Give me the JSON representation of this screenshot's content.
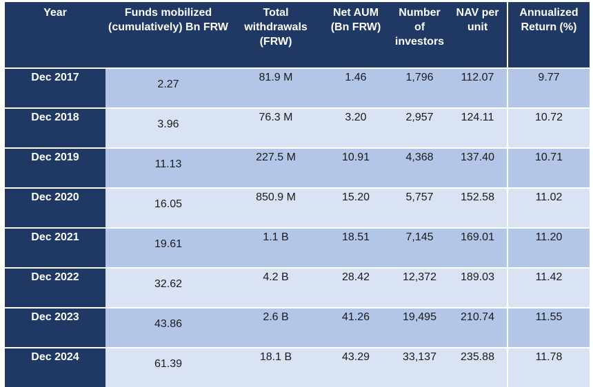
{
  "table": {
    "headers": [
      "Year",
      "Funds mobilized (cumulatively) Bn FRW",
      "Total withdrawals (FRW)",
      "Net AUM (Bn FRW)",
      "Number of investors",
      "NAV per unit",
      "Annualized Return (%)"
    ],
    "rows": [
      [
        "Dec 2017",
        "2.27",
        "81.9 M",
        "1.46",
        "1,796",
        "112.07",
        "9.77"
      ],
      [
        "Dec 2018",
        "3.96",
        "76.3 M",
        "3.20",
        "2,957",
        "124.11",
        "10.72"
      ],
      [
        "Dec 2019",
        "11.13",
        "227.5 M",
        "10.91",
        "4,368",
        "137.40",
        "10.71"
      ],
      [
        "Dec 2020",
        "16.05",
        "850.9 M",
        "15.20",
        "5,757",
        "152.58",
        "11.02"
      ],
      [
        "Dec 2021",
        "19.61",
        "1.1 B",
        "18.51",
        "7,145",
        "169.01",
        "11.20"
      ],
      [
        "Dec 2022",
        "32.62",
        "4.2 B",
        "28.42",
        "12,372",
        "189.03",
        "11.42"
      ],
      [
        "Dec 2023",
        "43.86",
        "2.6 B",
        "41.26",
        "19,495",
        "210.74",
        "11.55"
      ],
      [
        "Dec 2024",
        "61.39",
        "18.1 B",
        "43.29",
        "33,137",
        "235.88",
        "11.78"
      ]
    ]
  }
}
